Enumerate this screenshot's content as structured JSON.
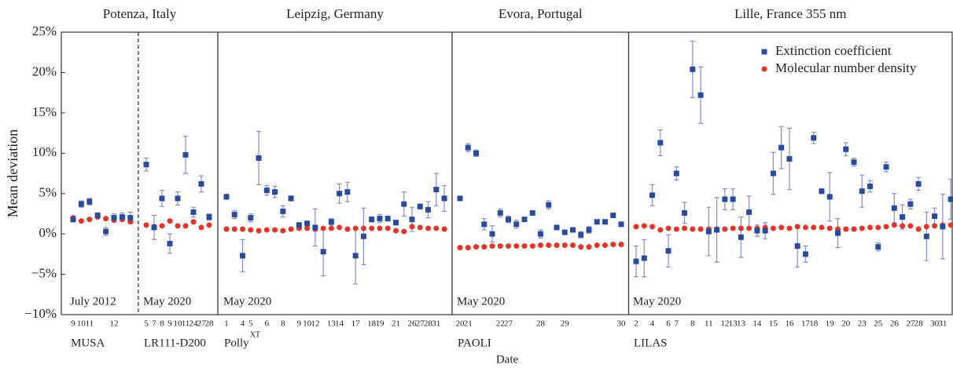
{
  "chart_data": {
    "type": "scatter",
    "ylabel": "Mean deviation",
    "xlabel": "Date",
    "ylim": [
      -10,
      25
    ],
    "yticks": [
      {
        "value": -10,
        "label": "−10%"
      },
      {
        "value": -5,
        "label": "−5%"
      },
      {
        "value": 0,
        "label": "0%"
      },
      {
        "value": 5,
        "label": "5%"
      },
      {
        "value": 10,
        "label": "10%"
      },
      {
        "value": 15,
        "label": "15%"
      },
      {
        "value": 20,
        "label": "20%"
      },
      {
        "value": 25,
        "label": "25%"
      }
    ],
    "legend": "upper right",
    "series": [
      {
        "name": "Extinction coefficient",
        "color": "#2a4b9c"
      },
      {
        "name": "Molecular number density",
        "color": "#e3342a"
      }
    ],
    "panels": [
      {
        "title": "Potenza, Italy",
        "groups": [
          {
            "instrument": "MUSA",
            "period": "July 2012",
            "categories": [
              "9",
              "10",
              "11",
              null,
              null,
              "12",
              null,
              null
            ],
            "extinction": [
              1.8,
              3.7,
              4.0,
              2.3,
              0.3,
              2.0,
              2.1,
              2.0
            ],
            "extinction_error": [
              0.3,
              0.4,
              0.4,
              0.3,
              0.5,
              0.5,
              0.5,
              0.7
            ],
            "molecular": [
              2.0,
              1.6,
              1.8,
              2.1,
              1.9,
              1.7,
              1.8,
              1.5
            ]
          },
          {
            "instrument": "LR111-D200",
            "period": "May 2020",
            "categories": [
              "5",
              "7",
              "8",
              "9",
              "10",
              "11",
              "24",
              "27",
              "28"
            ],
            "extinction": [
              8.6,
              0.8,
              4.4,
              -1.2,
              4.4,
              9.8,
              2.7,
              6.2,
              2.1
            ],
            "extinction_error": [
              0.8,
              1.5,
              1.0,
              1.2,
              0.8,
              2.3,
              0.6,
              1.0,
              0.4
            ],
            "molecular": [
              1.1,
              0.9,
              1.0,
              1.6,
              1.0,
              1.0,
              1.5,
              0.8,
              1.1
            ]
          }
        ]
      },
      {
        "title": "Leipzig, Germany",
        "groups": [
          {
            "instrument": "Polly",
            "instrument_superscript": "XT",
            "period": "May 2020",
            "categories": [
              "1",
              null,
              "4",
              "5",
              null,
              "6",
              null,
              "8",
              null,
              "9",
              "10",
              "12",
              null,
              "13",
              "14",
              null,
              "17",
              null,
              "18",
              "19",
              null,
              "21",
              null,
              "26",
              "27",
              "28",
              "31",
              null
            ],
            "extinction": [
              4.6,
              2.4,
              -2.7,
              2.0,
              9.4,
              5.4,
              5.2,
              2.8,
              4.4,
              1.1,
              1.3,
              0.8,
              -2.2,
              1.5,
              5.0,
              5.2,
              -2.7,
              -0.3,
              1.8,
              1.9,
              1.9,
              1.4,
              3.7,
              1.8,
              3.4,
              3.0,
              5.5,
              4.4
            ],
            "extinction_error": [
              0.3,
              0.5,
              2.0,
              0.5,
              3.3,
              0.6,
              0.7,
              0.7,
              0.3,
              0.3,
              0.3,
              2.3,
              3.0,
              0.4,
              1.2,
              1.2,
              3.5,
              3.5,
              0.3,
              0.5,
              0.3,
              0.3,
              1.5,
              1.5,
              0.3,
              1.0,
              2.0,
              1.6
            ],
            "molecular": [
              0.6,
              0.6,
              0.6,
              0.5,
              0.4,
              0.5,
              0.5,
              0.4,
              0.6,
              0.7,
              0.7,
              0.6,
              0.7,
              0.7,
              0.8,
              0.6,
              0.7,
              0.7,
              0.7,
              0.7,
              0.7,
              0.4,
              0.3,
              0.9,
              0.8,
              0.7,
              0.7,
              0.6
            ]
          }
        ]
      },
      {
        "title": "Evora, Portugal",
        "groups": [
          {
            "instrument": "PAOLI",
            "period": "May 2020",
            "categories": [
              "20",
              "21",
              null,
              null,
              null,
              "22",
              "27",
              null,
              null,
              null,
              "28",
              null,
              null,
              "29",
              null,
              null,
              null,
              null,
              null,
              null,
              "30"
            ],
            "extinction": [
              4.4,
              10.7,
              10.0,
              1.2,
              0.0,
              2.6,
              1.8,
              1.2,
              1.8,
              2.6,
              0.0,
              3.6,
              0.8,
              0.2,
              0.5,
              -0.1,
              0.5,
              1.5,
              1.5,
              2.3,
              1.2
            ],
            "extinction_error": [
              0.2,
              0.5,
              0.4,
              0.7,
              1.0,
              0.5,
              0.4,
              0.5,
              0.2,
              0.2,
              0.5,
              0.5,
              0.2,
              0.2,
              0.2,
              0.4,
              0.4,
              0.2,
              0.2,
              0.2,
              0.2
            ],
            "molecular": [
              -1.7,
              -1.7,
              -1.6,
              -1.6,
              -1.5,
              -1.5,
              -1.5,
              -1.5,
              -1.5,
              -1.5,
              -1.4,
              -1.4,
              -1.4,
              -1.4,
              -1.4,
              -1.6,
              -1.6,
              -1.4,
              -1.4,
              -1.3,
              -1.3
            ]
          }
        ]
      },
      {
        "title": "Lille, France 355 nm",
        "groups": [
          {
            "instrument": "LILAS",
            "period": "May 2020",
            "categories": [
              "2",
              null,
              "4",
              null,
              "6",
              "7",
              null,
              "8",
              null,
              "11",
              null,
              "12",
              "13",
              "13",
              null,
              "14",
              null,
              "15",
              null,
              "16",
              null,
              "17",
              "18",
              null,
              "19",
              null,
              "20",
              null,
              "23",
              null,
              "25",
              null,
              "26",
              null,
              "27",
              "28",
              null,
              "30",
              "31",
              null
            ],
            "extinction": [
              -3.4,
              -3.0,
              4.8,
              11.3,
              -2.1,
              7.5,
              2.6,
              20.4,
              17.2,
              0.3,
              0.5,
              4.3,
              4.3,
              -0.4,
              2.7,
              0.4,
              0.4,
              7.5,
              10.7,
              9.3,
              -1.5,
              -2.5,
              11.9,
              5.3,
              4.6,
              0.1,
              10.5,
              8.9,
              5.3,
              5.9,
              -1.6,
              8.3,
              3.2,
              2.1,
              3.7,
              6.2,
              -0.3,
              2.2,
              0.9,
              4.3
            ],
            "extinction_error": [
              1.9,
              2.3,
              1.3,
              1.6,
              2.0,
              0.8,
              1.3,
              3.5,
              3.5,
              3.0,
              4.0,
              1.3,
              1.3,
              2.5,
              2.0,
              0.7,
              1.0,
              2.6,
              2.6,
              3.8,
              2.6,
              1.0,
              0.7,
              0.3,
              3.0,
              1.8,
              0.8,
              0.5,
              2.0,
              0.7,
              0.5,
              0.6,
              1.8,
              1.5,
              0.6,
              0.8,
              3.0,
              1.0,
              4.0,
              2.5
            ],
            "molecular": [
              0.9,
              1.0,
              0.9,
              0.5,
              0.7,
              0.6,
              0.7,
              0.6,
              0.6,
              0.6,
              0.6,
              0.6,
              0.7,
              0.7,
              0.7,
              0.7,
              0.8,
              0.7,
              0.8,
              0.7,
              0.9,
              0.8,
              0.8,
              0.8,
              0.7,
              0.6,
              0.6,
              0.6,
              0.7,
              0.8,
              0.8,
              0.9,
              1.1,
              1.0,
              1.0,
              0.6,
              0.9,
              1.0,
              1.1,
              1.1
            ]
          }
        ]
      }
    ]
  }
}
